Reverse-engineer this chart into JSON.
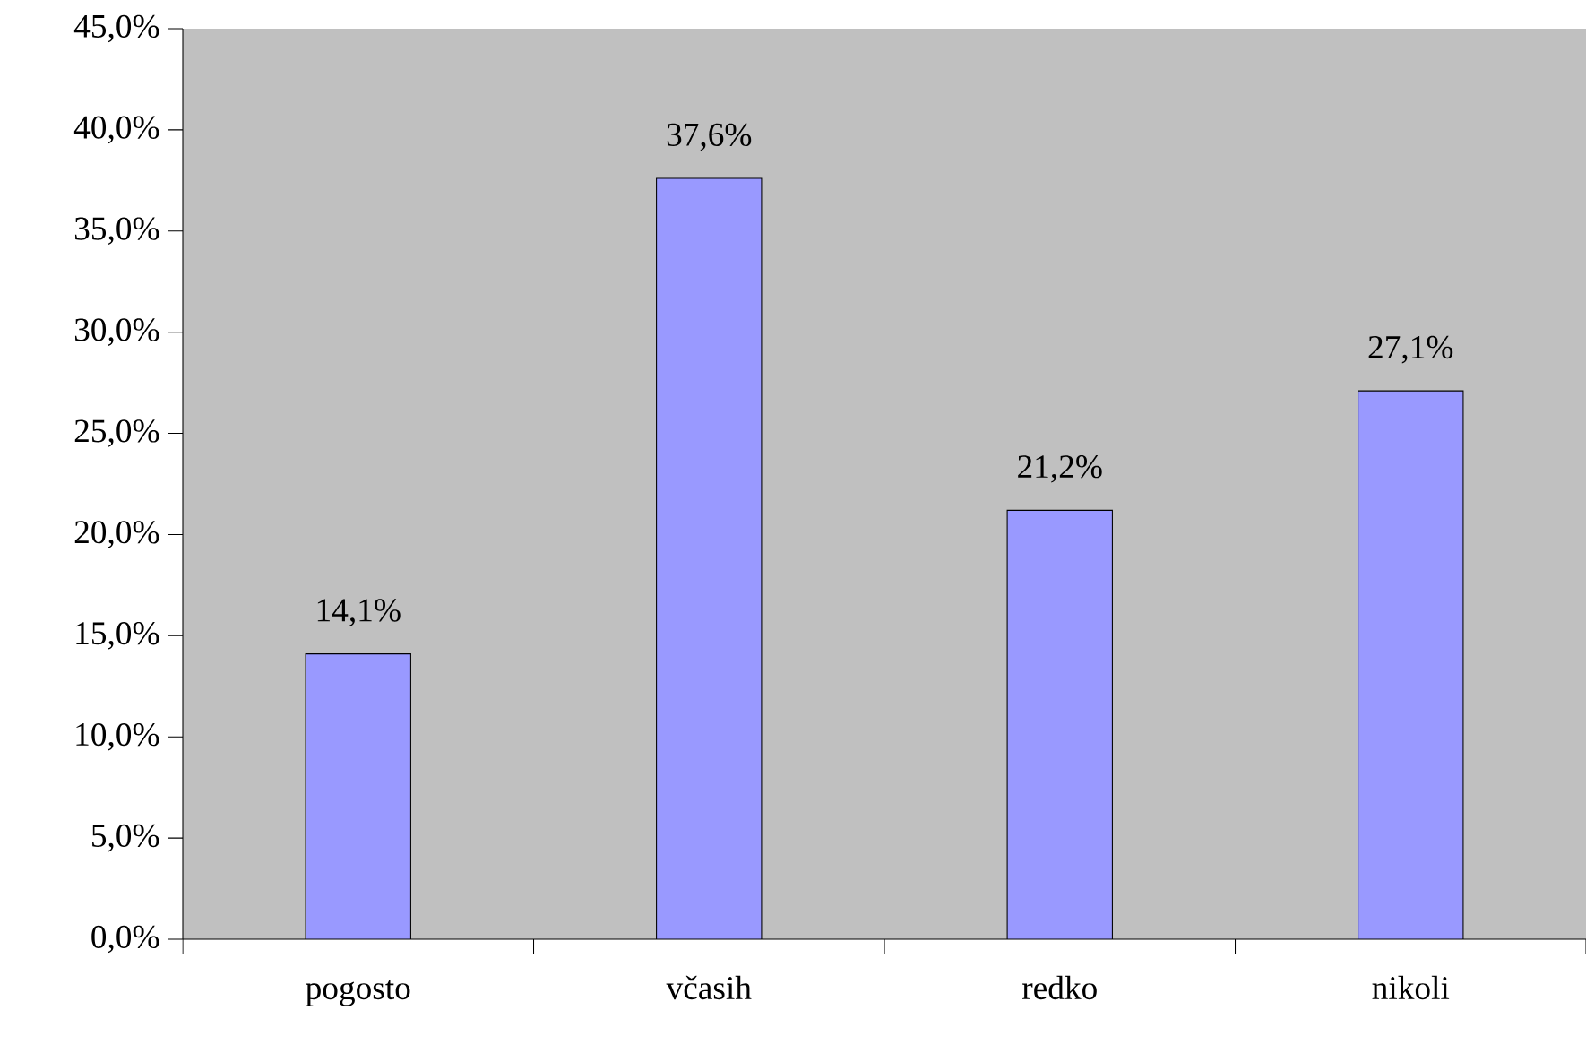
{
  "chart_data": {
    "type": "bar",
    "categories": [
      "pogosto",
      "včasih",
      "redko",
      "nikoli"
    ],
    "values": [
      14.1,
      37.6,
      21.2,
      27.1
    ],
    "value_labels": [
      "14,1%",
      "37,6%",
      "21,2%",
      "27,1%"
    ],
    "color": "#9999ff",
    "ylim": [
      0,
      45
    ],
    "yticks": [
      {
        "value": 0,
        "label": "0,0%"
      },
      {
        "value": 5,
        "label": "5,0%"
      },
      {
        "value": 10,
        "label": "10,0%"
      },
      {
        "value": 15,
        "label": "15,0%"
      },
      {
        "value": 20,
        "label": "20,0%"
      },
      {
        "value": 25,
        "label": "25,0%"
      },
      {
        "value": 30,
        "label": "30,0%"
      },
      {
        "value": 35,
        "label": "35,0%"
      },
      {
        "value": 40,
        "label": "40,0%"
      },
      {
        "value": 45,
        "label": "45,0%"
      }
    ],
    "grid": false
  }
}
